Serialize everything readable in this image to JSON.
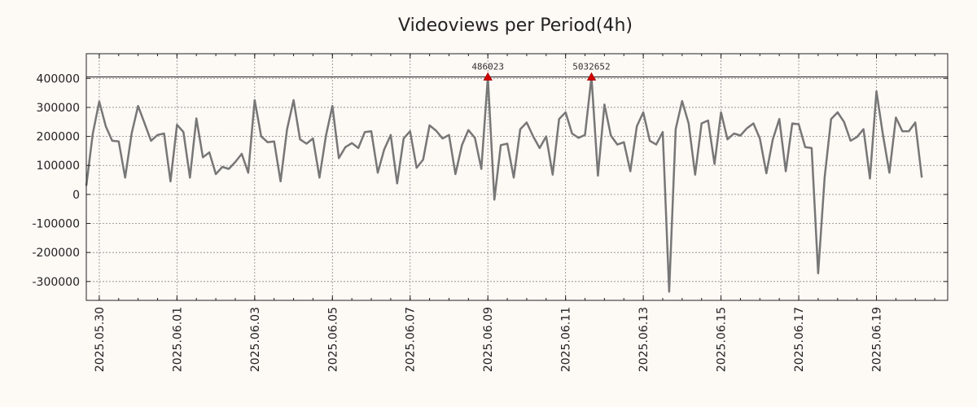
{
  "chart_data": {
    "type": "line",
    "title": "Videoviews per Period(4h)",
    "xlabel": "",
    "ylabel": "",
    "ylim": [
      -365000,
      485000
    ],
    "y_ticks": [
      400000,
      300000,
      200000,
      100000,
      0,
      -100000,
      -200000,
      -300000
    ],
    "y_tick_labels": [
      "400000",
      "300000",
      "200000",
      "100000",
      "0",
      "-100000",
      "-200000",
      "-300000"
    ],
    "x_ticks": [
      "2025.05.30",
      "2025.06.01",
      "2025.06.03",
      "2025.06.05",
      "2025.06.07",
      "2025.06.09",
      "2025.06.11",
      "2025.06.13",
      "2025.06.15",
      "2025.06.17",
      "2025.06.19"
    ],
    "x_range": [
      "2025.05.29 16:00",
      "2025.06.20 20:00"
    ],
    "grid": true,
    "reference_line": 405000,
    "annotations": [
      {
        "x": "2025.06.09 00:00",
        "y": 405000,
        "label": "486023"
      },
      {
        "x": "2025.06.11 16:00",
        "y": 405000,
        "label": "5032652"
      }
    ],
    "series": [
      {
        "color": "#777777",
        "x_start": "2025.05.29 16:00",
        "x_step_hours": 4,
        "values": [
          30000,
          210000,
          320000,
          235000,
          185000,
          183000,
          58000,
          210000,
          305000,
          245000,
          185000,
          205000,
          210000,
          45000,
          240000,
          215000,
          58000,
          262000,
          128000,
          145000,
          70000,
          95000,
          88000,
          112000,
          140000,
          75000,
          325000,
          200000,
          180000,
          183000,
          45000,
          225000,
          325000,
          190000,
          175000,
          193000,
          58000,
          202000,
          305000,
          125000,
          163000,
          177000,
          160000,
          215000,
          218000,
          75000,
          155000,
          205000,
          38000,
          193000,
          218000,
          92000,
          120000,
          238000,
          220000,
          193000,
          205000,
          70000,
          170000,
          222000,
          195000,
          88000,
          405000,
          -18000,
          170000,
          175000,
          58000,
          225000,
          248000,
          200000,
          160000,
          200000,
          68000,
          260000,
          283000,
          210000,
          195000,
          205000,
          405000,
          65000,
          310000,
          203000,
          172000,
          180000,
          80000,
          235000,
          283000,
          185000,
          172000,
          215000,
          -335000,
          225000,
          322000,
          245000,
          68000,
          245000,
          255000,
          105000,
          283000,
          190000,
          210000,
          203000,
          228000,
          245000,
          193000,
          73000,
          190000,
          260000,
          80000,
          245000,
          242000,
          163000,
          160000,
          -272000,
          60000,
          260000,
          283000,
          250000,
          185000,
          198000,
          225000,
          55000,
          355000,
          205000,
          75000,
          265000,
          218000,
          218000,
          248000,
          58000
        ]
      }
    ]
  }
}
